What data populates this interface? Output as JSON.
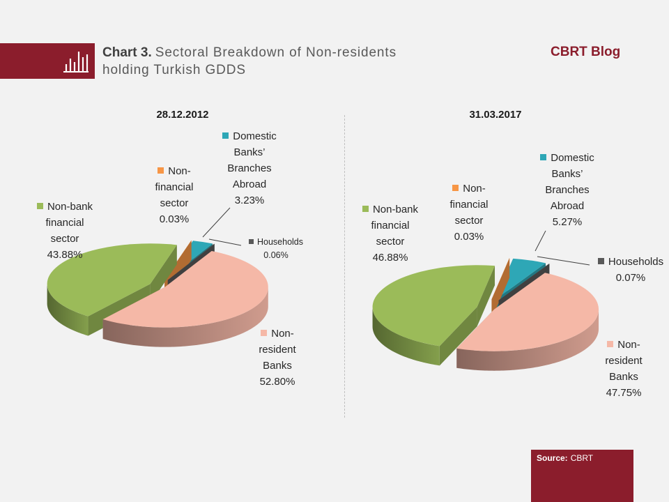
{
  "header": {
    "chart_number": "Chart 3.",
    "title_lines": [
      "Sectoral Breakdown of Non-residents",
      "holding Turkish GDDS"
    ],
    "blog_name": "CBRT Blog",
    "icon": "bar-chart-icon"
  },
  "colors": {
    "brand": "#8b1d2c",
    "background": "#f2f2f2"
  },
  "chart_data": [
    {
      "type": "pie",
      "title": "28.12.2012",
      "categories": [
        "Non-bank financial sector",
        "Non-financial sector",
        "Domestic Banks’ Branches Abroad",
        "Households",
        "Non-resident Banks"
      ],
      "values": [
        43.88,
        0.03,
        3.23,
        0.06,
        52.8
      ],
      "value_labels": [
        "43.88%",
        "0.03%",
        "3.23%",
        "0.06%",
        "52.80%"
      ],
      "colors": [
        "#9bbb59",
        "#f79646",
        "#2ea7b6",
        "#595959",
        "#f5b8a7"
      ]
    },
    {
      "type": "pie",
      "title": "31.03.2017",
      "categories": [
        "Non-bank financial sector",
        "Non-financial sector",
        "Domestic Banks’ Branches Abroad",
        "Households",
        "Non-resident Banks"
      ],
      "values": [
        46.88,
        0.03,
        5.27,
        0.07,
        47.75
      ],
      "value_labels": [
        "46.88%",
        "0.03%",
        "5.27%",
        "0.07%",
        "47.75%"
      ],
      "colors": [
        "#9bbb59",
        "#f79646",
        "#2ea7b6",
        "#595959",
        "#f5b8a7"
      ]
    }
  ],
  "source": {
    "label": "Source:",
    "value": "CBRT"
  }
}
